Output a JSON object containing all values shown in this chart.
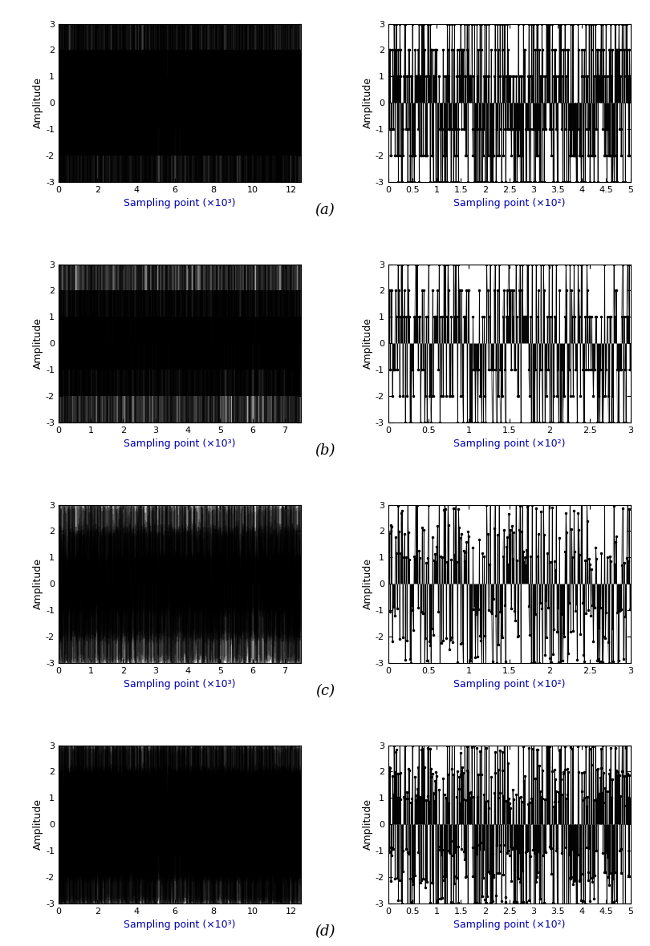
{
  "row_labels": [
    "(a)",
    "(b)",
    "(c)",
    "(d)"
  ],
  "label_fontsize": 9,
  "tick_fontsize": 8,
  "figure_label_fontsize": 13,
  "xlabel_color": "#0000AA",
  "subplots": [
    {
      "row": 0,
      "col": 0,
      "xlim": [
        0,
        12500
      ],
      "ylim": [
        -3,
        3
      ],
      "xticks": [
        0,
        2000,
        4000,
        6000,
        8000,
        10000,
        12000
      ],
      "xtick_labels": [
        "0",
        "2",
        "4",
        "6",
        "8",
        "10",
        "12"
      ],
      "xlabel": "Sampling point (×10³)",
      "n_syms": 12500,
      "n_per_sym": 1,
      "is_zoom": false,
      "noise_std": 0.0,
      "seed": 42
    },
    {
      "row": 0,
      "col": 1,
      "xlim": [
        0,
        500
      ],
      "ylim": [
        -3,
        3
      ],
      "xticks": [
        0,
        50,
        100,
        150,
        200,
        250,
        300,
        350,
        400,
        450,
        500
      ],
      "xtick_labels": [
        "0",
        "0.5",
        "1",
        "1.5",
        "2",
        "2.5",
        "3",
        "3.5",
        "4",
        "4.5",
        "5"
      ],
      "xlabel": "Sampling point (×10²)",
      "n_syms": 500,
      "n_per_sym": 1,
      "is_zoom": true,
      "noise_std": 0.0,
      "seed": 42
    },
    {
      "row": 1,
      "col": 0,
      "xlim": [
        0,
        7500
      ],
      "ylim": [
        -3,
        3
      ],
      "xticks": [
        0,
        1000,
        2000,
        3000,
        4000,
        5000,
        6000,
        7000
      ],
      "xtick_labels": [
        "0",
        "1",
        "2",
        "3",
        "4",
        "5",
        "6",
        "7"
      ],
      "xlabel": "Sampling point (×10³)",
      "n_syms": 7500,
      "n_per_sym": 1,
      "is_zoom": false,
      "noise_std": 0.0,
      "seed": 42
    },
    {
      "row": 1,
      "col": 1,
      "xlim": [
        0,
        300
      ],
      "ylim": [
        -3,
        3
      ],
      "xticks": [
        0,
        50,
        100,
        150,
        200,
        250,
        300
      ],
      "xtick_labels": [
        "0",
        "0.5",
        "1",
        "1.5",
        "2",
        "2.5",
        "3"
      ],
      "xlabel": "Sampling point (×10²)",
      "n_syms": 300,
      "n_per_sym": 1,
      "is_zoom": true,
      "noise_std": 0.0,
      "seed": 42
    },
    {
      "row": 2,
      "col": 0,
      "xlim": [
        0,
        7500
      ],
      "ylim": [
        -3,
        3
      ],
      "xticks": [
        0,
        1000,
        2000,
        3000,
        4000,
        5000,
        6000,
        7000
      ],
      "xtick_labels": [
        "0",
        "1",
        "2",
        "3",
        "4",
        "5",
        "6",
        "7"
      ],
      "xlabel": "Sampling point (×10³)",
      "n_syms": 7500,
      "n_per_sym": 1,
      "is_zoom": false,
      "noise_std": 0.18,
      "seed": 42
    },
    {
      "row": 2,
      "col": 1,
      "xlim": [
        0,
        300
      ],
      "ylim": [
        -3,
        3
      ],
      "xticks": [
        0,
        50,
        100,
        150,
        200,
        250,
        300
      ],
      "xtick_labels": [
        "0",
        "0.5",
        "1",
        "1.5",
        "2",
        "2.5",
        "3"
      ],
      "xlabel": "Sampling point (×10²)",
      "n_syms": 300,
      "n_per_sym": 1,
      "is_zoom": true,
      "noise_std": 0.18,
      "seed": 42
    },
    {
      "row": 3,
      "col": 0,
      "xlim": [
        0,
        12500
      ],
      "ylim": [
        -3,
        3
      ],
      "xticks": [
        0,
        2000,
        4000,
        6000,
        8000,
        10000,
        12000
      ],
      "xtick_labels": [
        "0",
        "2",
        "4",
        "6",
        "8",
        "10",
        "12"
      ],
      "xlabel": "Sampling point (×10³)",
      "n_syms": 12500,
      "n_per_sym": 1,
      "is_zoom": false,
      "noise_std": 0.15,
      "seed": 42
    },
    {
      "row": 3,
      "col": 1,
      "xlim": [
        0,
        500
      ],
      "ylim": [
        -3,
        3
      ],
      "xticks": [
        0,
        50,
        100,
        150,
        200,
        250,
        300,
        350,
        400,
        450,
        500
      ],
      "xtick_labels": [
        "0",
        "0.5",
        "1",
        "1.5",
        "2",
        "2.5",
        "3",
        "3.5",
        "4",
        "4.5",
        "5"
      ],
      "xlabel": "Sampling point (×10²)",
      "n_syms": 500,
      "n_per_sym": 1,
      "is_zoom": true,
      "noise_std": 0.15,
      "seed": 42
    }
  ]
}
